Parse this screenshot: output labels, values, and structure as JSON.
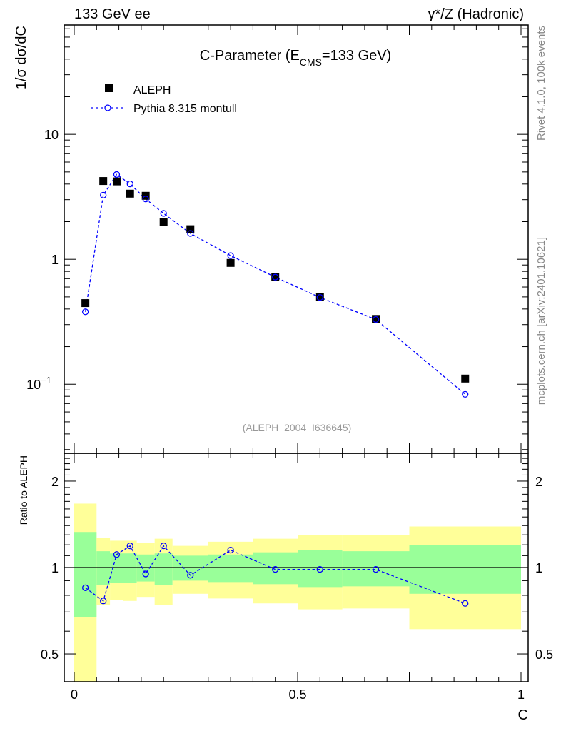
{
  "header": {
    "left": "133 GeV ee",
    "right": "γ*/Z (Hadronic)"
  },
  "side_text": {
    "rivet": "Rivet 4.1.0,  100k events",
    "site": "mcplots.cern.ch [arXiv:2401.10621]"
  },
  "chart_data": [
    {
      "type": "scatter",
      "title_main": "C-Parameter (E",
      "title_sub": "CMS",
      "title_end": "=133 GeV)",
      "ylabel": "1/σ  dσ/dC",
      "xlabel": "C",
      "yscale": "log",
      "xlim": [
        -0.022,
        1.018
      ],
      "ylim": [
        0.028,
        75
      ],
      "yticks": [
        {
          "v": 10,
          "label": "10"
        },
        {
          "v": 1,
          "label": "1"
        },
        {
          "v": 0.1,
          "label": "10",
          "sup": "−1"
        }
      ],
      "watermark": "(ALEPH_2004_I636645)",
      "legend_placement": "top-left",
      "x": [
        0.025,
        0.065,
        0.095,
        0.125,
        0.16,
        0.2,
        0.26,
        0.35,
        0.45,
        0.55,
        0.675,
        0.875
      ],
      "series": [
        {
          "name": "ALEPH",
          "marker": "square",
          "color": "#000000",
          "values": [
            0.446,
            4.23,
            4.2,
            3.35,
            3.22,
            1.99,
            1.74,
            0.935,
            0.72,
            0.5,
            0.333,
            0.111
          ]
        },
        {
          "name": "Pythia 8.315 montull",
          "marker": "open-circle",
          "line": "dashed",
          "color": "#0000ff",
          "values": [
            0.38,
            3.26,
            4.77,
            4.01,
            3.04,
            2.33,
            1.61,
            1.07,
            0.72,
            0.495,
            0.33,
            0.083
          ]
        }
      ]
    },
    {
      "type": "line",
      "ylabel": "Ratio to ALEPH",
      "yscale": "log",
      "ylim": [
        0.4,
        2.5
      ],
      "yticks": [
        {
          "v": 2,
          "label": "2"
        },
        {
          "v": 1,
          "label": "1"
        },
        {
          "v": 0.5,
          "label": "0.5"
        }
      ],
      "xticks": [
        {
          "v": 0,
          "label": "0"
        },
        {
          "v": 0.5,
          "label": "0.5"
        },
        {
          "v": 1,
          "label": "1"
        }
      ],
      "bin_edges": [
        0,
        0.05,
        0.08,
        0.11,
        0.14,
        0.18,
        0.22,
        0.3,
        0.4,
        0.5,
        0.6,
        0.75,
        1.0
      ],
      "band_stat": {
        "color": "#99ff99",
        "upper": [
          1.33,
          1.14,
          1.12,
          1.12,
          1.11,
          1.12,
          1.1,
          1.11,
          1.13,
          1.15,
          1.14,
          1.2
        ],
        "lower": [
          0.67,
          0.87,
          0.885,
          0.885,
          0.894,
          0.87,
          0.9,
          0.89,
          0.875,
          0.855,
          0.86,
          0.81
        ]
      },
      "band_total": {
        "color": "#ffff99",
        "upper": [
          1.67,
          1.27,
          1.24,
          1.24,
          1.22,
          1.26,
          1.19,
          1.23,
          1.26,
          1.3,
          1.3,
          1.39
        ],
        "lower": [
          0.3,
          0.74,
          0.77,
          0.765,
          0.79,
          0.74,
          0.81,
          0.78,
          0.75,
          0.715,
          0.72,
          0.61
        ]
      },
      "x": [
        0.025,
        0.065,
        0.095,
        0.125,
        0.16,
        0.2,
        0.26,
        0.35,
        0.45,
        0.55,
        0.675,
        0.875
      ],
      "ratio": [
        0.85,
        0.765,
        1.11,
        1.19,
        0.95,
        1.19,
        0.94,
        1.15,
        0.985,
        0.985,
        0.985,
        0.75
      ]
    }
  ]
}
